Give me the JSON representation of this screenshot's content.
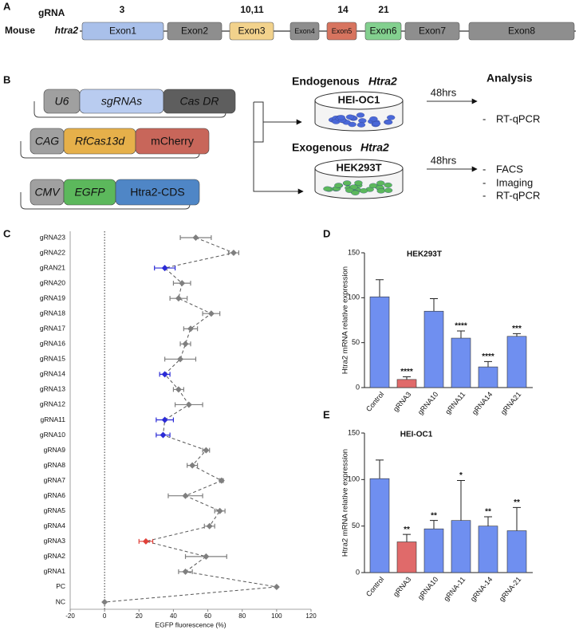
{
  "panel_a": {
    "label": "A",
    "grna": "gRNA",
    "mouse": "Mouse",
    "gene": "htra2",
    "exons": [
      "Exon1",
      "Exon2",
      "Exon3",
      "Exon4",
      "Exon5",
      "Exon6",
      "Exon7",
      "Exon8"
    ],
    "grna_sites": [
      "3",
      "10,11",
      "14",
      "21"
    ]
  },
  "panel_b": {
    "label": "B",
    "constructs": [
      [
        "U6",
        "sgRNAs",
        "Cas DR"
      ],
      [
        "CAG",
        "RfCas13d",
        "mCherry"
      ],
      [
        "CMV",
        "EGFP",
        "Htra2-CDS"
      ]
    ],
    "groups": [
      {
        "kind": "Endogenous",
        "gene": "Htra2",
        "cells": "HEI-OC1",
        "time": "48hrs",
        "assays": [
          "RT-qPCR"
        ]
      },
      {
        "kind": "Exogenous",
        "gene": "Htra2",
        "cells": "HEK293T",
        "time": "48hrs",
        "assays": [
          "FACS",
          "Imaging",
          "RT-qPCR"
        ]
      }
    ],
    "analysis_title": "Analysis",
    "bullet": "-"
  },
  "chart_data": [
    {
      "type": "forest",
      "panel": "C",
      "categories": [
        "gRNA23",
        "gRNA22",
        "gRAN21",
        "gRNA20",
        "gRNA19",
        "gRNA18",
        "gRNA17",
        "gRNA16",
        "gRNA15",
        "gRNA14",
        "gRNA13",
        "gRNA12",
        "gRNA11",
        "gRNA10",
        "gRNA9",
        "gRNA8",
        "gRNA7",
        "gRNA6",
        "gRNA5",
        "gRNA4",
        "gRNA3",
        "gRNA2",
        "gRNA1",
        "PC",
        "NC"
      ],
      "values": [
        53,
        75,
        35,
        45,
        43,
        62,
        50,
        47,
        44,
        35,
        43,
        49,
        35,
        34,
        59,
        51,
        68,
        47,
        67,
        61,
        24,
        59,
        47,
        100,
        0
      ],
      "errors": [
        9,
        3,
        6,
        5,
        5,
        5,
        4,
        3,
        9,
        3,
        3,
        8,
        5,
        4,
        2,
        3,
        1,
        10,
        3,
        3,
        4,
        12,
        4,
        0,
        0
      ],
      "colors": [
        "#7f7f7f",
        "#7f7f7f",
        "#2b2bd6",
        "#7f7f7f",
        "#7f7f7f",
        "#7f7f7f",
        "#7f7f7f",
        "#7f7f7f",
        "#7f7f7f",
        "#2b2bd6",
        "#7f7f7f",
        "#7f7f7f",
        "#2b2bd6",
        "#2b2bd6",
        "#7f7f7f",
        "#7f7f7f",
        "#7f7f7f",
        "#7f7f7f",
        "#7f7f7f",
        "#7f7f7f",
        "#e0413a",
        "#7f7f7f",
        "#7f7f7f",
        "#7f7f7f",
        "#7f7f7f"
      ],
      "xlabel": "EGFP fluorescence (%)",
      "xlim": [
        -20,
        120
      ],
      "xticks": [
        -20,
        0,
        20,
        40,
        60,
        80,
        100,
        120
      ]
    },
    {
      "type": "bar",
      "panel": "D",
      "title": "HEK293T",
      "categories": [
        "Control",
        "gRNA3",
        "gRNA10",
        "gRNA11",
        "gRNA14",
        "gRNA21"
      ],
      "values": [
        101,
        9,
        85,
        55,
        23,
        57
      ],
      "errors": [
        19,
        3,
        14,
        8,
        6,
        3
      ],
      "annotations": [
        null,
        "****",
        null,
        "****",
        "****",
        "***"
      ],
      "colors": [
        "#6f8ff0",
        "#e06a6a",
        "#6f8ff0",
        "#6f8ff0",
        "#6f8ff0",
        "#6f8ff0"
      ],
      "ylabel": "Htra2 mRNA relative expression",
      "ylim": [
        0,
        150
      ],
      "yticks": [
        0,
        50,
        100,
        150
      ]
    },
    {
      "type": "bar",
      "panel": "E",
      "title": "HEI-OC1",
      "categories": [
        "Control",
        "gRNA3",
        "gRNA10",
        "gRNA-11",
        "gRNA-14",
        "gRNA-21"
      ],
      "values": [
        101,
        33,
        47,
        56,
        50,
        45
      ],
      "errors": [
        20,
        8,
        9,
        43,
        10,
        25
      ],
      "annotations": [
        null,
        "**",
        "**",
        "*",
        "**",
        "**"
      ],
      "colors": [
        "#6f8ff0",
        "#e06a6a",
        "#6f8ff0",
        "#6f8ff0",
        "#6f8ff0",
        "#6f8ff0"
      ],
      "ylabel": "Htra2 mRNA relative expression",
      "ylim": [
        0,
        150
      ],
      "yticks": [
        0,
        50,
        100,
        150
      ]
    }
  ]
}
